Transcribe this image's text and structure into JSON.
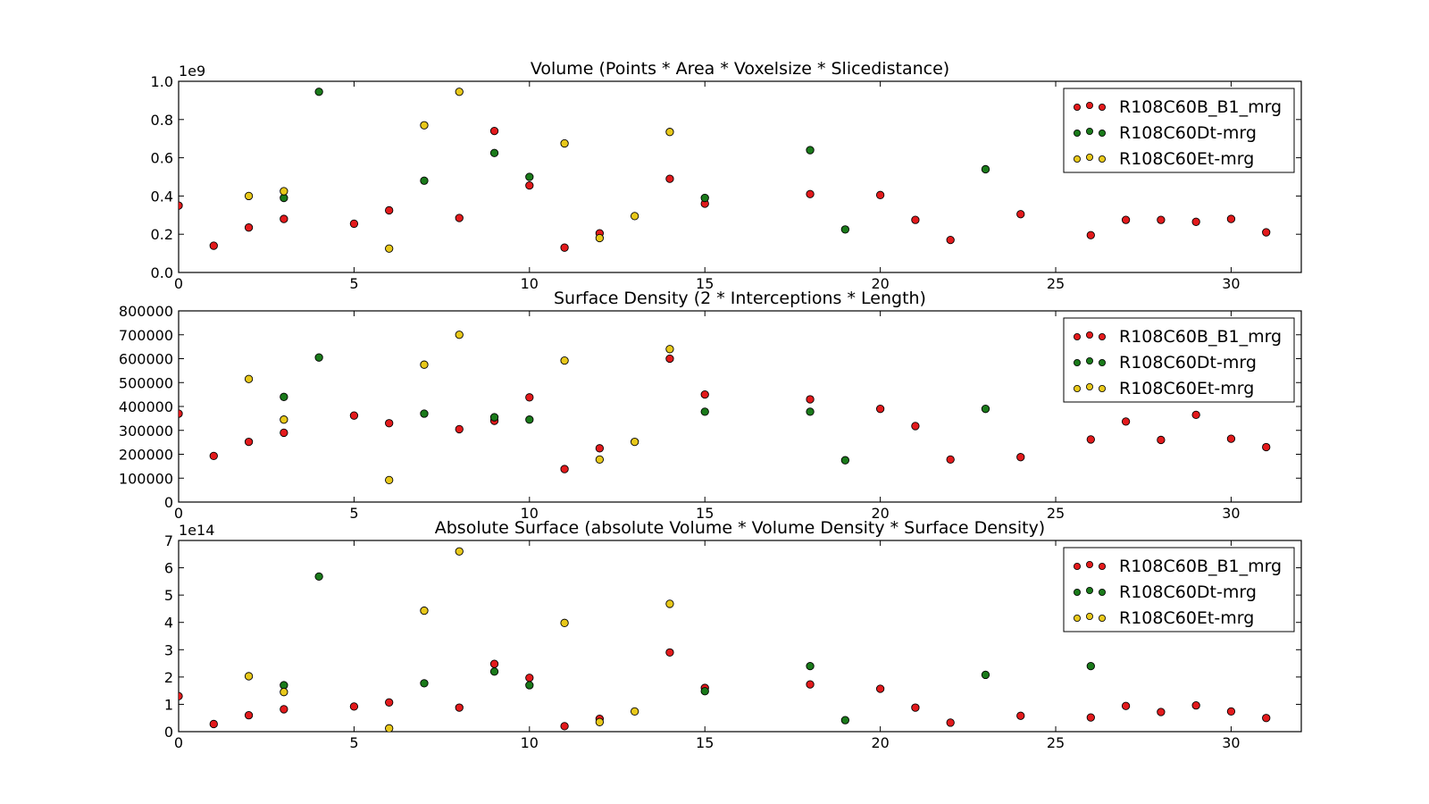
{
  "chart_data": [
    {
      "type": "scatter",
      "title": "Volume (Points * Area * Voxelsize * Slicedistance)",
      "xlabel": "",
      "ylabel": "",
      "xlim": [
        0,
        32
      ],
      "ylim": [
        0,
        1.0
      ],
      "y_scale_label": "1e9",
      "y_unit_multiplier": 1000000000,
      "xticks": [
        "0",
        "5",
        "10",
        "15",
        "20",
        "25",
        "30"
      ],
      "yticks": [
        "0.0",
        "0.2",
        "0.4",
        "0.6",
        "0.8",
        "1.0"
      ],
      "ytick_values": [
        0,
        0.2,
        0.4,
        0.6,
        0.8,
        1.0
      ],
      "legend_position": "top-right",
      "grid": false,
      "series": [
        {
          "name": "R108C60B_B1_mrg",
          "color": "#e31a1c",
          "x": [
            0,
            1,
            2,
            3,
            5,
            6,
            8,
            9,
            10,
            11,
            12,
            14,
            15,
            18,
            20,
            21,
            22,
            24,
            26,
            27,
            28,
            29,
            30,
            31
          ],
          "y": [
            0.35,
            0.14,
            0.235,
            0.28,
            0.255,
            0.325,
            0.285,
            0.74,
            0.455,
            0.13,
            0.205,
            0.49,
            0.36,
            0.41,
            0.405,
            0.275,
            0.17,
            0.305,
            0.195,
            0.275,
            0.275,
            0.265,
            0.28,
            0.21
          ]
        },
        {
          "name": "R108C60Dt-mrg",
          "color": "#1a7a1a",
          "x": [
            3,
            4,
            7,
            9,
            10,
            15,
            18,
            19,
            23
          ],
          "y": [
            0.39,
            0.945,
            0.48,
            0.625,
            0.5,
            0.39,
            0.64,
            0.225,
            0.54
          ]
        },
        {
          "name": "R108C60Et-mrg",
          "color": "#e8c81a",
          "x": [
            2,
            3,
            6,
            7,
            8,
            11,
            12,
            13,
            14
          ],
          "y": [
            0.4,
            0.425,
            0.125,
            0.77,
            0.945,
            0.675,
            0.18,
            0.295,
            0.735
          ]
        }
      ]
    },
    {
      "type": "scatter",
      "title": "Surface Density (2 * Interceptions * Length)",
      "xlabel": "",
      "ylabel": "",
      "xlim": [
        0,
        32
      ],
      "ylim": [
        0,
        800000
      ],
      "y_scale_label": "",
      "xticks": [
        "0",
        "5",
        "10",
        "15",
        "20",
        "25",
        "30"
      ],
      "yticks": [
        "0",
        "100000",
        "200000",
        "300000",
        "400000",
        "500000",
        "600000",
        "700000",
        "800000"
      ],
      "ytick_values": [
        0,
        100000,
        200000,
        300000,
        400000,
        500000,
        600000,
        700000,
        800000
      ],
      "legend_position": "top-right",
      "grid": false,
      "series": [
        {
          "name": "R108C60B_B1_mrg",
          "color": "#e31a1c",
          "x": [
            0,
            1,
            2,
            3,
            5,
            6,
            8,
            9,
            10,
            11,
            12,
            14,
            15,
            18,
            20,
            21,
            22,
            24,
            26,
            27,
            28,
            29,
            30,
            31
          ],
          "y": [
            370000,
            193000,
            252000,
            290000,
            362000,
            330000,
            305000,
            340000,
            438000,
            138000,
            225000,
            600000,
            450000,
            430000,
            390000,
            318000,
            178000,
            188000,
            262000,
            337000,
            260000,
            365000,
            265000,
            230000
          ]
        },
        {
          "name": "R108C60Dt-mrg",
          "color": "#1a7a1a",
          "x": [
            3,
            4,
            7,
            9,
            10,
            15,
            18,
            19,
            23
          ],
          "y": [
            440000,
            605000,
            370000,
            355000,
            345000,
            378000,
            378000,
            175000,
            390000
          ]
        },
        {
          "name": "R108C60Et-mrg",
          "color": "#e8c81a",
          "x": [
            2,
            3,
            6,
            7,
            8,
            11,
            12,
            13,
            14
          ],
          "y": [
            515000,
            345000,
            92000,
            575000,
            700000,
            592000,
            178000,
            252000,
            640000
          ]
        }
      ]
    },
    {
      "type": "scatter",
      "title": "Absolute Surface (absolute Volume * Volume Density * Surface Density)",
      "xlabel": "",
      "ylabel": "",
      "xlim": [
        0,
        32
      ],
      "ylim": [
        0,
        7
      ],
      "y_scale_label": "1e14",
      "y_unit_multiplier": 100000000000000,
      "xticks": [
        "0",
        "5",
        "10",
        "15",
        "20",
        "25",
        "30"
      ],
      "yticks": [
        "0",
        "1",
        "2",
        "3",
        "4",
        "5",
        "6",
        "7"
      ],
      "ytick_values": [
        0,
        1,
        2,
        3,
        4,
        5,
        6,
        7
      ],
      "legend_position": "top-right",
      "grid": false,
      "series": [
        {
          "name": "R108C60B_B1_mrg",
          "color": "#e31a1c",
          "x": [
            0,
            1,
            2,
            3,
            5,
            6,
            8,
            9,
            10,
            11,
            12,
            14,
            15,
            18,
            20,
            21,
            22,
            24,
            26,
            27,
            28,
            29,
            30,
            31
          ],
          "y": [
            1.3,
            0.28,
            0.6,
            0.82,
            0.92,
            1.07,
            0.88,
            2.48,
            1.97,
            0.2,
            0.47,
            2.9,
            1.6,
            1.73,
            1.57,
            0.88,
            0.33,
            0.58,
            0.52,
            0.94,
            0.72,
            0.96,
            0.74,
            0.5
          ]
        },
        {
          "name": "R108C60Dt-mrg",
          "color": "#1a7a1a",
          "x": [
            3,
            4,
            7,
            9,
            10,
            15,
            18,
            19,
            23,
            26
          ],
          "y": [
            1.7,
            5.68,
            1.77,
            2.2,
            1.7,
            1.48,
            2.4,
            0.42,
            2.08,
            2.4
          ]
        },
        {
          "name": "R108C60Et-mrg",
          "color": "#e8c81a",
          "x": [
            2,
            3,
            6,
            7,
            8,
            11,
            12,
            13,
            14
          ],
          "y": [
            2.03,
            1.45,
            0.12,
            4.43,
            6.6,
            3.98,
            0.35,
            0.74,
            4.68
          ]
        }
      ]
    }
  ]
}
